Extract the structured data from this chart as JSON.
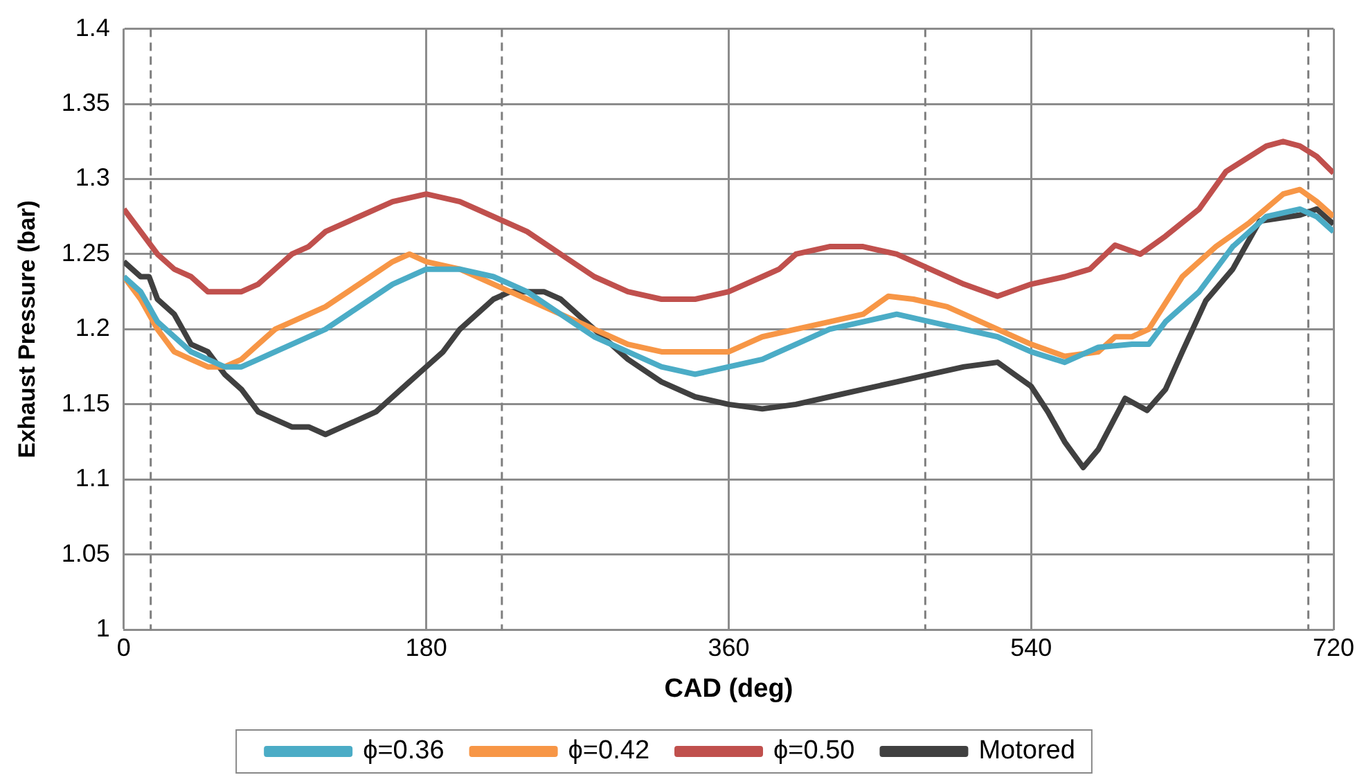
{
  "chart_data": {
    "type": "line",
    "xlabel": "CAD (deg)",
    "ylabel": "Exhaust Pressure (bar)",
    "xlim": [
      0,
      720
    ],
    "xticks": [
      0,
      180,
      360,
      540,
      720
    ],
    "ylim": [
      1,
      1.4
    ],
    "yticks": [
      1,
      1.05,
      1.1,
      1.15,
      1.2,
      1.25,
      1.3,
      1.35,
      1.4
    ],
    "grid": true,
    "legend": "bottom",
    "line_style": "solid",
    "ref_lines": [
      {
        "axis": "x",
        "value": 16,
        "color": "#7f7f7f",
        "line_style": "dashed"
      },
      {
        "axis": "x",
        "value": 225,
        "color": "#7f7f7f",
        "line_style": "dashed"
      },
      {
        "axis": "x",
        "value": 477,
        "color": "#7f7f7f",
        "line_style": "dashed"
      },
      {
        "axis": "x",
        "value": 705,
        "color": "#7f7f7f",
        "line_style": "dashed"
      }
    ],
    "series": [
      {
        "name": "ϕ=0.36",
        "color": "#4bacc6",
        "x": [
          0,
          10,
          20,
          30,
          40,
          50,
          60,
          70,
          80,
          100,
          120,
          140,
          160,
          180,
          200,
          220,
          240,
          260,
          280,
          300,
          320,
          340,
          360,
          380,
          400,
          420,
          440,
          460,
          480,
          500,
          520,
          540,
          560,
          580,
          600,
          610,
          620,
          640,
          660,
          680,
          700,
          710,
          720
        ],
        "values": [
          1.235,
          1.225,
          1.205,
          1.195,
          1.185,
          1.18,
          1.175,
          1.175,
          1.18,
          1.19,
          1.2,
          1.215,
          1.23,
          1.24,
          1.24,
          1.235,
          1.225,
          1.21,
          1.195,
          1.185,
          1.175,
          1.17,
          1.175,
          1.18,
          1.19,
          1.2,
          1.205,
          1.21,
          1.205,
          1.2,
          1.195,
          1.185,
          1.178,
          1.188,
          1.19,
          1.19,
          1.205,
          1.225,
          1.255,
          1.275,
          1.28,
          1.275,
          1.265
        ]
      },
      {
        "name": "ϕ=0.42",
        "color": "#f79646",
        "x": [
          0,
          10,
          20,
          30,
          40,
          50,
          60,
          70,
          80,
          90,
          100,
          120,
          140,
          160,
          170,
          180,
          200,
          220,
          240,
          260,
          280,
          300,
          320,
          340,
          360,
          370,
          380,
          400,
          420,
          440,
          455,
          470,
          490,
          500,
          520,
          540,
          560,
          580,
          590,
          600,
          610,
          630,
          650,
          670,
          690,
          700,
          710,
          720
        ],
        "values": [
          1.235,
          1.22,
          1.2,
          1.185,
          1.18,
          1.175,
          1.175,
          1.18,
          1.19,
          1.2,
          1.205,
          1.215,
          1.23,
          1.245,
          1.25,
          1.245,
          1.24,
          1.23,
          1.22,
          1.21,
          1.2,
          1.19,
          1.185,
          1.185,
          1.185,
          1.19,
          1.195,
          1.2,
          1.205,
          1.21,
          1.222,
          1.22,
          1.215,
          1.21,
          1.2,
          1.19,
          1.182,
          1.185,
          1.195,
          1.195,
          1.2,
          1.235,
          1.255,
          1.271,
          1.29,
          1.293,
          1.285,
          1.275
        ]
      },
      {
        "name": "ϕ=0.50",
        "color": "#c0504d",
        "x": [
          0,
          10,
          20,
          30,
          40,
          50,
          60,
          70,
          80,
          90,
          100,
          110,
          120,
          140,
          160,
          180,
          200,
          220,
          240,
          260,
          280,
          300,
          320,
          340,
          360,
          380,
          390,
          400,
          420,
          440,
          460,
          480,
          500,
          520,
          540,
          560,
          575,
          590,
          605,
          620,
          640,
          656,
          680,
          690,
          700,
          710,
          720
        ],
        "values": [
          1.28,
          1.265,
          1.25,
          1.24,
          1.235,
          1.225,
          1.225,
          1.225,
          1.23,
          1.24,
          1.25,
          1.255,
          1.265,
          1.275,
          1.285,
          1.29,
          1.285,
          1.275,
          1.265,
          1.25,
          1.235,
          1.225,
          1.22,
          1.22,
          1.225,
          1.235,
          1.24,
          1.25,
          1.255,
          1.255,
          1.25,
          1.24,
          1.23,
          1.222,
          1.23,
          1.235,
          1.24,
          1.256,
          1.25,
          1.262,
          1.28,
          1.305,
          1.322,
          1.325,
          1.322,
          1.315,
          1.304
        ]
      },
      {
        "name": "Motored",
        "color": "#404040",
        "x": [
          0,
          10,
          15,
          20,
          30,
          40,
          50,
          60,
          70,
          80,
          90,
          100,
          110,
          120,
          130,
          140,
          150,
          160,
          170,
          180,
          190,
          200,
          210,
          220,
          230,
          240,
          250,
          260,
          270,
          280,
          290,
          300,
          320,
          340,
          360,
          380,
          400,
          420,
          440,
          460,
          480,
          500,
          520,
          530,
          540,
          550,
          560,
          571,
          580,
          596,
          609,
          620,
          630,
          644,
          660,
          676,
          700,
          710,
          720
        ],
        "values": [
          1.245,
          1.235,
          1.235,
          1.22,
          1.21,
          1.19,
          1.185,
          1.17,
          1.16,
          1.145,
          1.14,
          1.135,
          1.135,
          1.13,
          1.135,
          1.14,
          1.145,
          1.155,
          1.165,
          1.175,
          1.185,
          1.2,
          1.21,
          1.22,
          1.225,
          1.225,
          1.225,
          1.22,
          1.21,
          1.2,
          1.19,
          1.18,
          1.165,
          1.155,
          1.15,
          1.147,
          1.15,
          1.155,
          1.16,
          1.165,
          1.17,
          1.175,
          1.178,
          1.17,
          1.162,
          1.145,
          1.125,
          1.108,
          1.12,
          1.154,
          1.146,
          1.16,
          1.185,
          1.219,
          1.24,
          1.272,
          1.276,
          1.28,
          1.27
        ]
      }
    ]
  }
}
